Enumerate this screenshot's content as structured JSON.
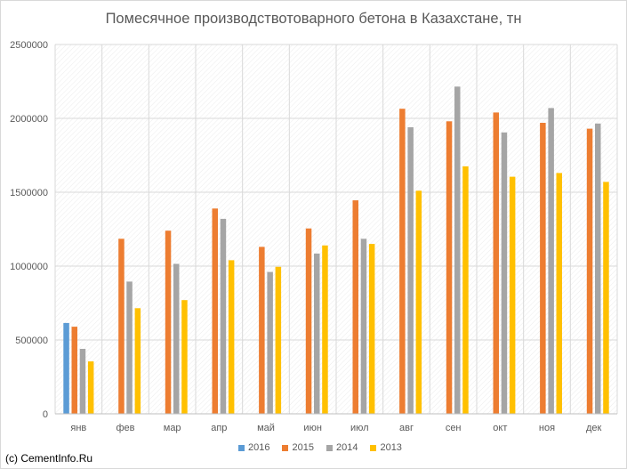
{
  "chart_data": {
    "type": "bar",
    "title": "Помесячное производствотоварного бетона в Казахстане, тн",
    "categories": [
      "янв",
      "фев",
      "мар",
      "апр",
      "май",
      "июн",
      "июл",
      "авг",
      "сен",
      "окт",
      "ноя",
      "дек"
    ],
    "ylim": [
      0,
      2500000
    ],
    "yticks": [
      "0",
      "500000",
      "1000000",
      "1500000",
      "2000000",
      "2500000"
    ],
    "grid": true,
    "legend_position": "bottom",
    "series": [
      {
        "name": "2016",
        "color": "#5b9bd5",
        "values": [
          615000,
          null,
          null,
          null,
          null,
          null,
          null,
          null,
          null,
          null,
          null,
          null
        ]
      },
      {
        "name": "2015",
        "color": "#ed7d31",
        "values": [
          590000,
          1185000,
          1240000,
          1390000,
          1130000,
          1255000,
          1445000,
          2065000,
          1980000,
          2040000,
          1970000,
          1930000
        ]
      },
      {
        "name": "2014",
        "color": "#a5a5a5",
        "values": [
          440000,
          895000,
          1015000,
          1320000,
          960000,
          1085000,
          1185000,
          1940000,
          2215000,
          1905000,
          2070000,
          1965000
        ]
      },
      {
        "name": "2013",
        "color": "#ffc000",
        "values": [
          355000,
          715000,
          770000,
          1040000,
          995000,
          1140000,
          1150000,
          1510000,
          1675000,
          1605000,
          1630000,
          1570000
        ]
      }
    ]
  },
  "credit": "(c) CementInfo.Ru"
}
